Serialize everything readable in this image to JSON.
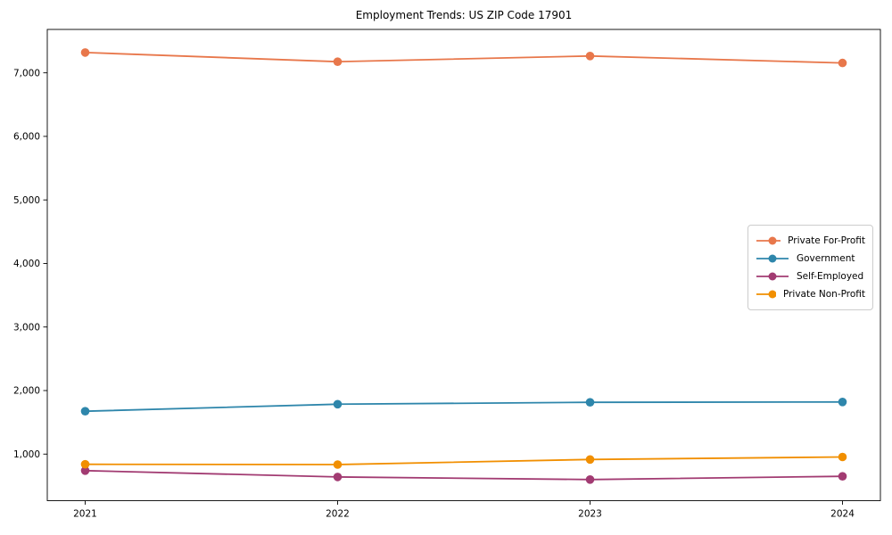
{
  "chart_data": {
    "type": "line",
    "title": "Employment Trends: US ZIP Code 17901",
    "xlabel": "",
    "ylabel": "",
    "x": [
      2021,
      2022,
      2023,
      2024
    ],
    "x_tick_labels": [
      "2021",
      "2022",
      "2023",
      "2024"
    ],
    "y_ticks": [
      1000,
      2000,
      3000,
      4000,
      5000,
      6000,
      7000
    ],
    "y_tick_labels": [
      "1,000",
      "2,000",
      "3,000",
      "4,000",
      "5,000",
      "6,000",
      "7,000"
    ],
    "xlim": [
      2020.85,
      2024.15
    ],
    "ylim": [
      267,
      7683
    ],
    "grid": false,
    "legend_position": "right-center",
    "axis_color": "#000000",
    "background_color": "#ffffff",
    "series": [
      {
        "name": "Private For-Profit",
        "color": "#E8774B",
        "values": [
          7320,
          7175,
          7265,
          7155
        ]
      },
      {
        "name": "Government",
        "color": "#2E86AB",
        "values": [
          1675,
          1785,
          1815,
          1820
        ]
      },
      {
        "name": "Self-Employed",
        "color": "#A23B72",
        "values": [
          740,
          640,
          600,
          650
        ]
      },
      {
        "name": "Private Non-Profit",
        "color": "#F18F01",
        "values": [
          840,
          835,
          915,
          955
        ]
      }
    ]
  }
}
